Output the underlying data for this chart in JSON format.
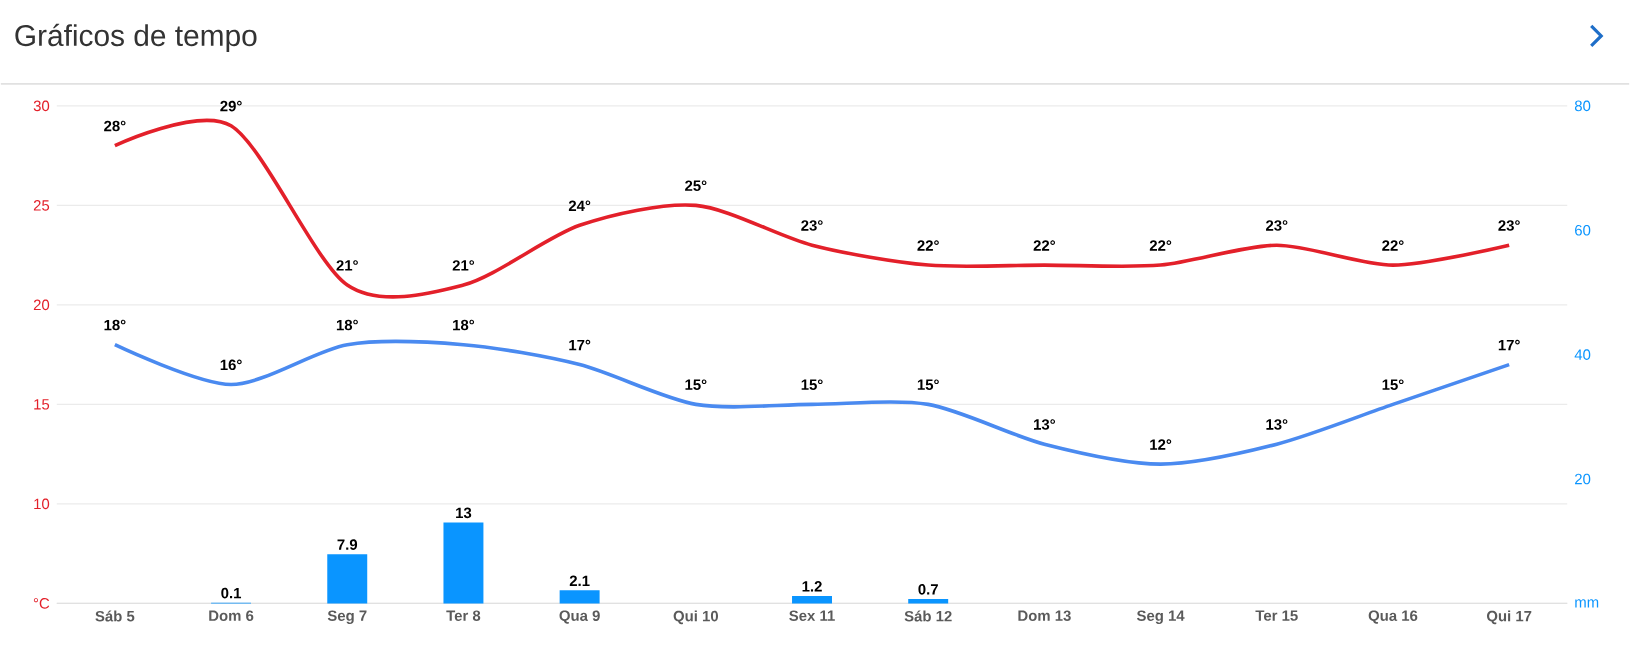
{
  "chart_data": {
    "type": "line",
    "title": "Gráficos de tempo",
    "categories": [
      "Sáb 5",
      "Dom 6",
      "Seg 7",
      "Ter 8",
      "Qua 9",
      "Qui 10",
      "Sex 11",
      "Sáb 12",
      "Dom 13",
      "Seg 14",
      "Ter 15",
      "Qua 16",
      "Qui 17"
    ],
    "series": [
      {
        "color": "#e3202a",
        "values": [
          28,
          29,
          21,
          21,
          24,
          25,
          23,
          22,
          22,
          22,
          23,
          22,
          23
        ],
        "value_labels": [
          "28°",
          "29°",
          "21°",
          "21°",
          "24°",
          "25°",
          "23°",
          "22°",
          "22°",
          "22°",
          "23°",
          "22°",
          "23°"
        ]
      },
      {
        "color": "#4a8af0",
        "values": [
          18,
          16,
          18,
          18,
          17,
          15,
          15,
          15,
          13,
          12,
          13,
          15,
          17
        ],
        "value_labels": [
          "18°",
          "16°",
          "18°",
          "18°",
          "17°",
          "15°",
          "15°",
          "15°",
          "13°",
          "12°",
          "13°",
          "15°",
          "17°"
        ]
      },
      {
        "type": "bar",
        "axis": "y2",
        "color": "#0a95ff",
        "values": [
          0,
          0.1,
          7.9,
          13,
          2.1,
          0,
          1.2,
          0.7,
          null,
          null,
          null,
          null,
          null
        ],
        "value_labels": [
          null,
          "0.1",
          "7.9",
          "13",
          "2.1",
          null,
          "1.2",
          "0.7",
          null,
          null,
          null,
          null,
          null
        ]
      }
    ],
    "ylim": [
      5,
      30
    ],
    "yticks": [
      {
        "value": 5,
        "label": "°C"
      },
      10,
      15,
      20,
      25,
      30
    ],
    "y2lim": [
      0,
      80
    ],
    "y2ticks": [
      {
        "value": 0,
        "label": "mm"
      },
      20,
      40,
      60,
      80
    ],
    "grid": "y",
    "marker": "none",
    "line_style": "solid"
  }
}
